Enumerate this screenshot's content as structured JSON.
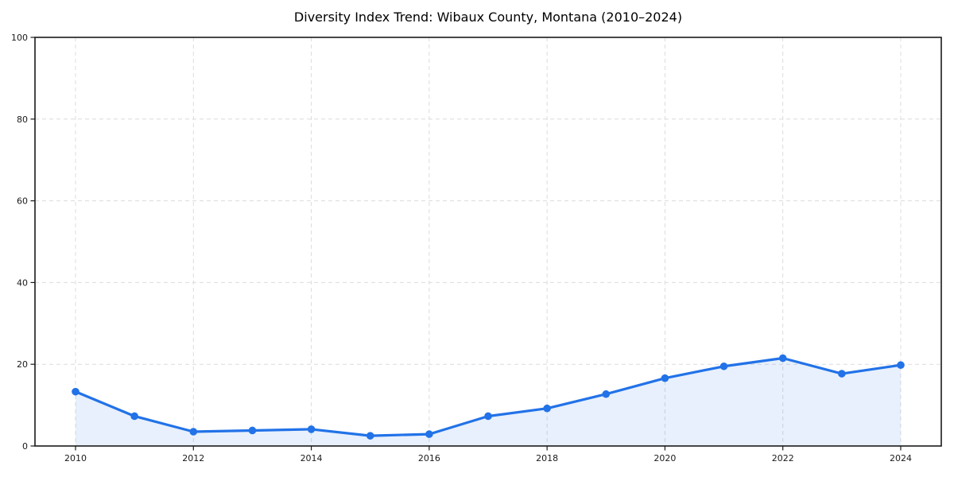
{
  "chart_data": {
    "type": "line",
    "title": "Diversity Index Trend: Wibaux County, Montana (2010–2024)",
    "xlabel": "",
    "ylabel": "",
    "x": [
      2010,
      2011,
      2012,
      2013,
      2014,
      2015,
      2016,
      2017,
      2018,
      2019,
      2020,
      2021,
      2022,
      2023,
      2024
    ],
    "series": [
      {
        "name": "Diversity Index",
        "values": [
          13.3,
          7.3,
          3.5,
          3.8,
          4.1,
          2.5,
          2.9,
          7.3,
          9.2,
          12.7,
          16.6,
          19.5,
          21.5,
          17.7,
          19.8
        ]
      }
    ],
    "xticks": [
      2010,
      2012,
      2014,
      2016,
      2018,
      2020,
      2022,
      2024
    ],
    "yticks": [
      0,
      20,
      40,
      60,
      80,
      100
    ],
    "xlim": [
      2009.312,
      2024.688
    ],
    "ylim": [
      0,
      100
    ],
    "grid": true,
    "legend_position": "none",
    "area_fill": true,
    "marker": "circle",
    "colors": {
      "line": "#2272e8",
      "marker": "#2272e8",
      "fill": "#2272e8",
      "fill_opacity": 0.11,
      "grid": "#dcdcdc",
      "spine": "#1a1a1a",
      "tick_label": "#1a1a1a",
      "title": "#000000",
      "background": "#ffffff"
    }
  }
}
